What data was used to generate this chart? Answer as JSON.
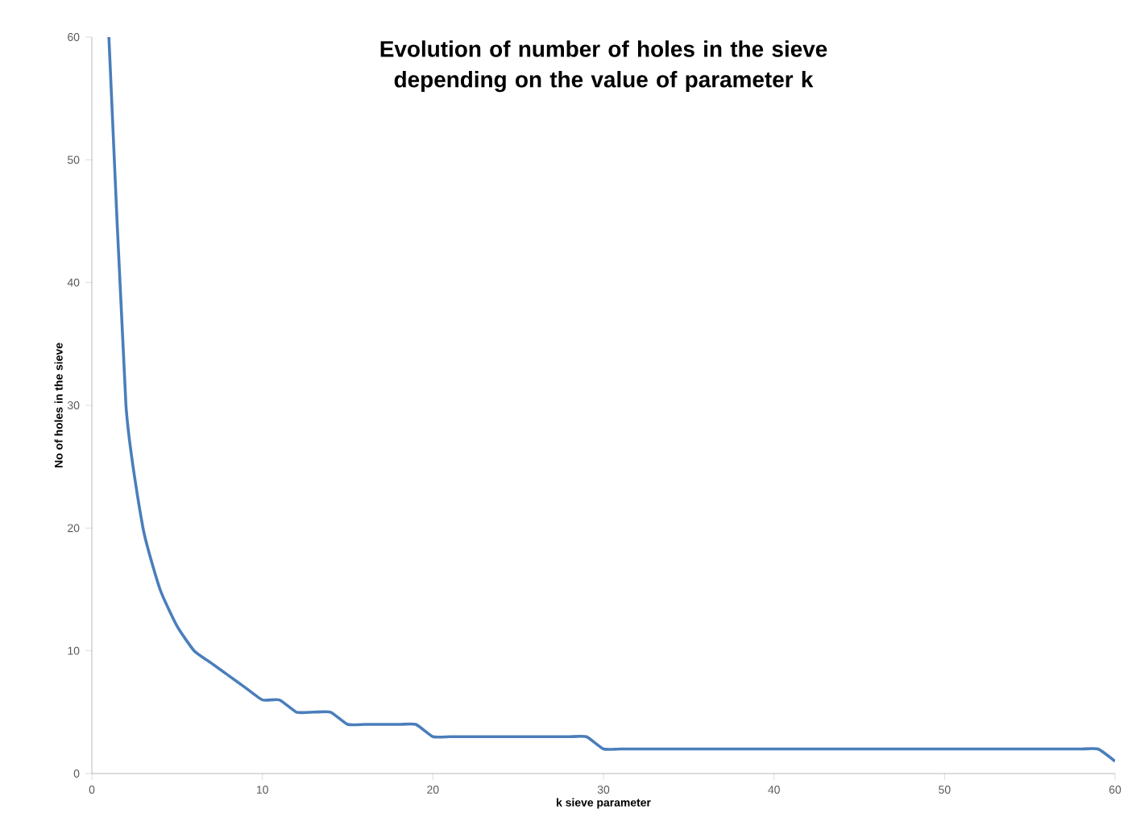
{
  "chart_data": {
    "type": "line",
    "title": "Evolution of number of holes in the sieve depending on the value of parameter k",
    "xlabel": "k sieve parameter",
    "ylabel": "No of holes in the sieve",
    "x": [
      1,
      2,
      3,
      4,
      5,
      6,
      7,
      8,
      9,
      10,
      11,
      12,
      13,
      14,
      15,
      16,
      17,
      18,
      19,
      20,
      21,
      22,
      23,
      24,
      25,
      26,
      27,
      28,
      29,
      30,
      31,
      32,
      33,
      34,
      35,
      36,
      37,
      38,
      39,
      40,
      41,
      42,
      43,
      44,
      45,
      46,
      47,
      48,
      49,
      50,
      51,
      52,
      53,
      54,
      55,
      56,
      57,
      58,
      59,
      60
    ],
    "series": [
      {
        "color": "#4a7ebb",
        "values": [
          60,
          30,
          20,
          15,
          12,
          10,
          9,
          8,
          7,
          6,
          6,
          5,
          5,
          5,
          4,
          4,
          4,
          4,
          4,
          3,
          3,
          3,
          3,
          3,
          3,
          3,
          3,
          3,
          3,
          2,
          2,
          2,
          2,
          2,
          2,
          2,
          2,
          2,
          2,
          2,
          2,
          2,
          2,
          2,
          2,
          2,
          2,
          2,
          2,
          2,
          2,
          2,
          2,
          2,
          2,
          2,
          2,
          2,
          2,
          1
        ]
      }
    ],
    "xlim": [
      0,
      60
    ],
    "ylim": [
      0,
      60
    ],
    "xticks": [
      0,
      10,
      20,
      30,
      40,
      50,
      60
    ],
    "yticks": [
      0,
      10,
      20,
      30,
      40,
      50,
      60
    ],
    "marker": "none",
    "line_style": "solid"
  }
}
